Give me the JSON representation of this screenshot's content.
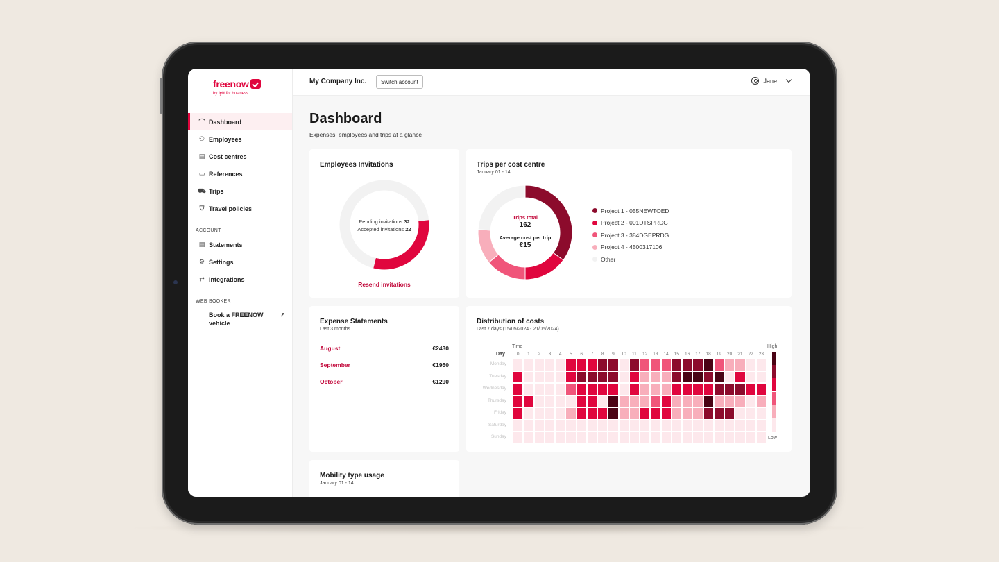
{
  "brand": {
    "name": "freenow",
    "by": "by",
    "lyft": "lyft",
    "suffix": "for business"
  },
  "header": {
    "company": "My Company Inc.",
    "switch_label": "Switch account",
    "user_name": "Jane"
  },
  "sidebar": {
    "items": [
      {
        "label": "Dashboard",
        "icon": "gauge-icon",
        "glyph": "⌒",
        "active": true
      },
      {
        "label": "Employees",
        "icon": "users-icon",
        "glyph": "⚇"
      },
      {
        "label": "Cost centres",
        "icon": "cost-centre-icon",
        "glyph": "▤"
      },
      {
        "label": "References",
        "icon": "references-icon",
        "glyph": "▭"
      },
      {
        "label": "Trips",
        "icon": "car-icon",
        "glyph": "⛟"
      },
      {
        "label": "Travel policies",
        "icon": "shield-icon",
        "glyph": "⛉"
      }
    ],
    "account_section": "ACCOUNT",
    "account_items": [
      {
        "label": "Statements",
        "icon": "document-icon",
        "glyph": "▤"
      },
      {
        "label": "Settings",
        "icon": "gear-icon",
        "glyph": "⚙"
      },
      {
        "label": "Integrations",
        "icon": "arrows-icon",
        "glyph": "⇄"
      }
    ],
    "web_section": "WEB BOOKER",
    "web_item": {
      "label_line1": "Book a FREENOW",
      "label_line2": "vehicle",
      "icon": "external-link-icon",
      "glyph": "↗"
    }
  },
  "page": {
    "title": "Dashboard",
    "subtitle": "Expenses, employees and trips at a glance"
  },
  "invitations": {
    "title": "Employees Invitations",
    "pending_label": "Pending invitations",
    "pending": 32,
    "accepted_label": "Accepted invitations",
    "accepted": 22,
    "link": "Resend invitations",
    "colors": {
      "pending": "#f2f2f2",
      "accepted": "#e0063e"
    }
  },
  "trips": {
    "title": "Trips per cost centre",
    "period": "January 01 - 14",
    "total_label": "Trips total",
    "total": "162",
    "avg_label": "Average cost per trip",
    "avg": "€15",
    "segments": [
      {
        "name": "Project 1 - 055NEWTOED",
        "value": 0.35,
        "color": "#8c0b2c"
      },
      {
        "name": "Project 2 - 001DTSPRDG",
        "value": 0.15,
        "color": "#e0063e"
      },
      {
        "name": "Project 3 - 384DGEPRDG",
        "value": 0.14,
        "color": "#f0557a"
      },
      {
        "name": "Project 4 - 4500317106",
        "value": 0.12,
        "color": "#f8aebb"
      },
      {
        "name": "Other",
        "value": 0.24,
        "color": "#f2f2f2"
      }
    ]
  },
  "statements": {
    "title": "Expense Statements",
    "period": "Last 3 months",
    "rows": [
      {
        "month": "August",
        "amount": "€2430"
      },
      {
        "month": "September",
        "amount": "€1950"
      },
      {
        "month": "October",
        "amount": "€1290"
      }
    ]
  },
  "distribution": {
    "title": "Distribution of costs",
    "period": "Last 7 days (15/05/2024 - 21/05/2024)",
    "time_label": "Time",
    "day_label": "Day",
    "high_label": "High",
    "low_label": "Low",
    "hours": [
      "0",
      "1",
      "2",
      "3",
      "4",
      "5",
      "6",
      "7",
      "8",
      "9",
      "10",
      "11",
      "12",
      "13",
      "14",
      "15",
      "16",
      "17",
      "18",
      "19",
      "20",
      "21",
      "22",
      "23"
    ],
    "days": [
      "Monday",
      "Tuesday",
      "Wednesday",
      "Thursday",
      "Friday",
      "Saturday",
      "Sunday"
    ],
    "levels": [
      [
        1,
        1,
        1,
        1,
        1,
        4,
        4,
        4,
        5,
        5,
        1,
        5,
        3,
        3,
        3,
        5,
        5,
        5,
        6,
        3,
        2,
        2,
        1,
        1
      ],
      [
        4,
        1,
        1,
        1,
        1,
        4,
        5,
        5,
        5,
        5,
        1,
        4,
        2,
        2,
        2,
        5,
        6,
        6,
        5,
        6,
        1,
        4,
        1,
        1
      ],
      [
        4,
        1,
        1,
        1,
        1,
        3,
        4,
        4,
        4,
        4,
        1,
        4,
        2,
        2,
        2,
        4,
        4,
        4,
        4,
        5,
        5,
        5,
        4,
        4
      ],
      [
        4,
        4,
        1,
        1,
        1,
        1,
        4,
        4,
        1,
        6,
        2,
        2,
        2,
        3,
        4,
        2,
        2,
        2,
        6,
        2,
        2,
        2,
        1,
        2
      ],
      [
        4,
        1,
        1,
        1,
        1,
        2,
        4,
        4,
        4,
        6,
        2,
        2,
        4,
        4,
        4,
        2,
        2,
        2,
        5,
        5,
        5,
        1,
        1,
        1
      ],
      [
        1,
        1,
        1,
        1,
        1,
        1,
        1,
        1,
        1,
        1,
        1,
        1,
        1,
        1,
        1,
        1,
        1,
        1,
        1,
        1,
        1,
        1,
        1,
        1
      ],
      [
        1,
        1,
        1,
        1,
        1,
        1,
        1,
        1,
        1,
        1,
        1,
        1,
        1,
        1,
        1,
        1,
        1,
        1,
        1,
        1,
        1,
        1,
        1,
        1
      ]
    ],
    "scale_colors": [
      "#fde8ec",
      "#f8aebb",
      "#f0557a",
      "#e0063e",
      "#8c0b2c",
      "#4a0314"
    ]
  },
  "mobility": {
    "title": "Mobility type usage",
    "period": "January 01 - 14"
  }
}
